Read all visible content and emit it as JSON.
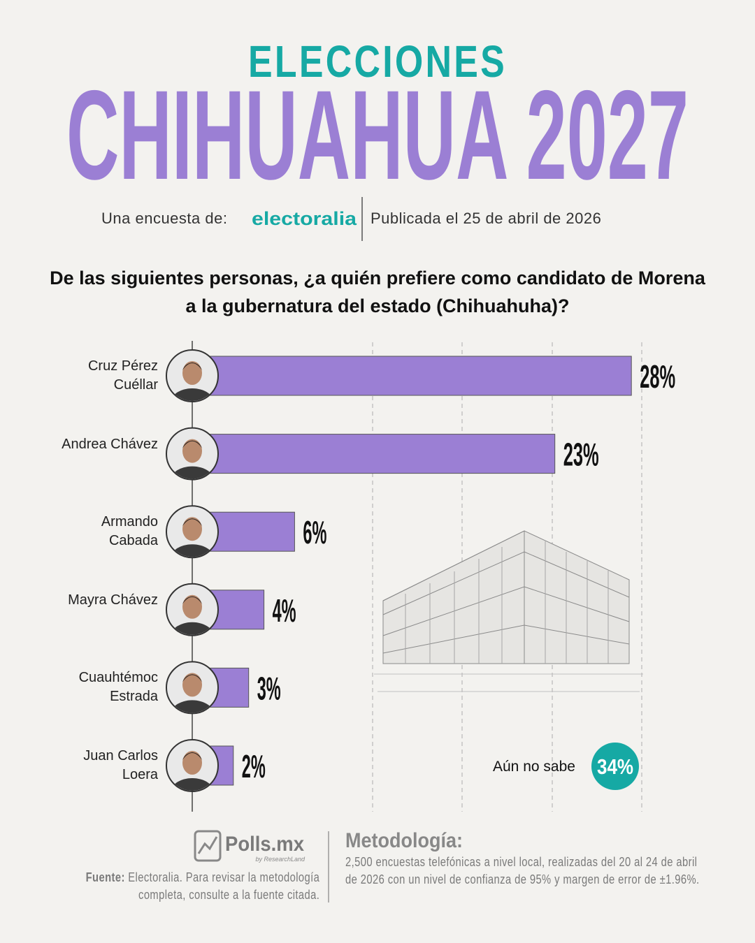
{
  "header": {
    "kicker": "ELECCIONES",
    "title": "CHIHUAHUA 2027",
    "survey_by": "Una encuesta de:",
    "pollster": "electoralia",
    "published": "Publicada el 25 de abril de 2026"
  },
  "chart_data": {
    "type": "bar",
    "orientation": "horizontal",
    "title": "De las siguientes personas, ¿a quién prefiere como candidato de Morena a la gubernatura del estado (Chihuahuha)?",
    "categories": [
      "Cruz Pérez Cuéllar",
      "Andrea Chávez",
      "Armando Cabada",
      "Mayra Chávez",
      "Cuauhtémoc Estrada",
      "Juan Carlos Loera"
    ],
    "values": [
      28,
      23,
      6,
      4,
      3,
      2
    ],
    "value_labels": [
      "28%",
      "23%",
      "6%",
      "4%",
      "3%",
      "2%"
    ],
    "color": "#9b7fd4",
    "undecided": {
      "label": "Aún no sabe",
      "value": 34,
      "value_label": "34%",
      "color": "#16a9a4"
    }
  },
  "footer": {
    "logo": "Polls.mx",
    "logo_sub": "by ResearchLand",
    "source_label": "Fuente:",
    "source_text": "Electoralia. Para revisar la metodología completa, consulte a la fuente citada.",
    "methodology_title": "Metodología:",
    "methodology_text": "2,500 encuestas telefónicas a nivel local, realizadas del 20 al 24 de abril de 2026 con un nivel de confianza de 95% y margen de error de ±1.96%."
  }
}
